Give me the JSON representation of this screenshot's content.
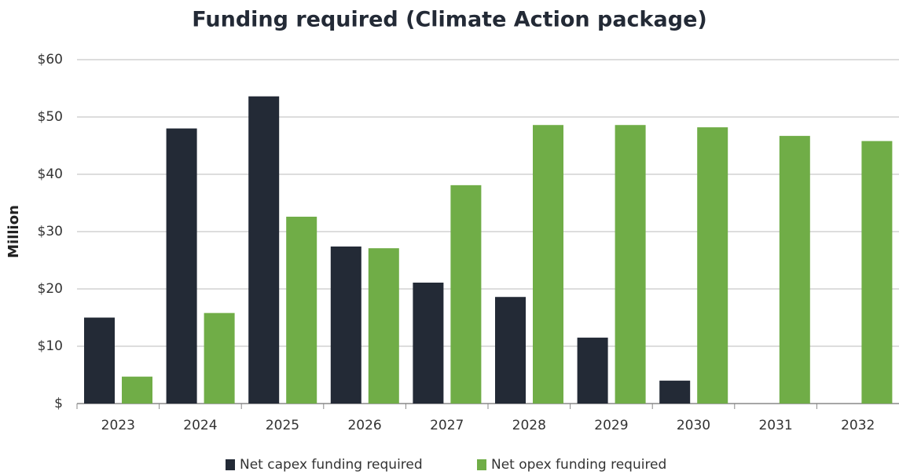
{
  "chart_data": {
    "type": "bar",
    "title": "Funding required (Climate Action package)",
    "y_label": "Million",
    "categories": [
      "2023",
      "2024",
      "2025",
      "2026",
      "2027",
      "2028",
      "2029",
      "2030",
      "2031",
      "2032"
    ],
    "series": [
      {
        "name": "Net capex funding required",
        "color": "#232a36",
        "values": [
          15,
          48,
          53.6,
          27.4,
          21.1,
          18.6,
          11.5,
          4,
          0,
          0
        ]
      },
      {
        "name": "Net opex funding required",
        "color": "#70ad47",
        "values": [
          4.7,
          15.8,
          32.6,
          27.1,
          38.1,
          48.6,
          48.6,
          48.2,
          46.7,
          45.8
        ]
      }
    ],
    "ylim": [
      0,
      60
    ],
    "yticks": [
      {
        "value": 0,
        "label": "$"
      },
      {
        "value": 10,
        "label": "$10"
      },
      {
        "value": 20,
        "label": "$20"
      },
      {
        "value": 30,
        "label": "$30"
      },
      {
        "value": 40,
        "label": "$40"
      },
      {
        "value": 50,
        "label": "$50"
      },
      {
        "value": 60,
        "label": "$60"
      }
    ],
    "grid": true,
    "legend": "bottom"
  }
}
